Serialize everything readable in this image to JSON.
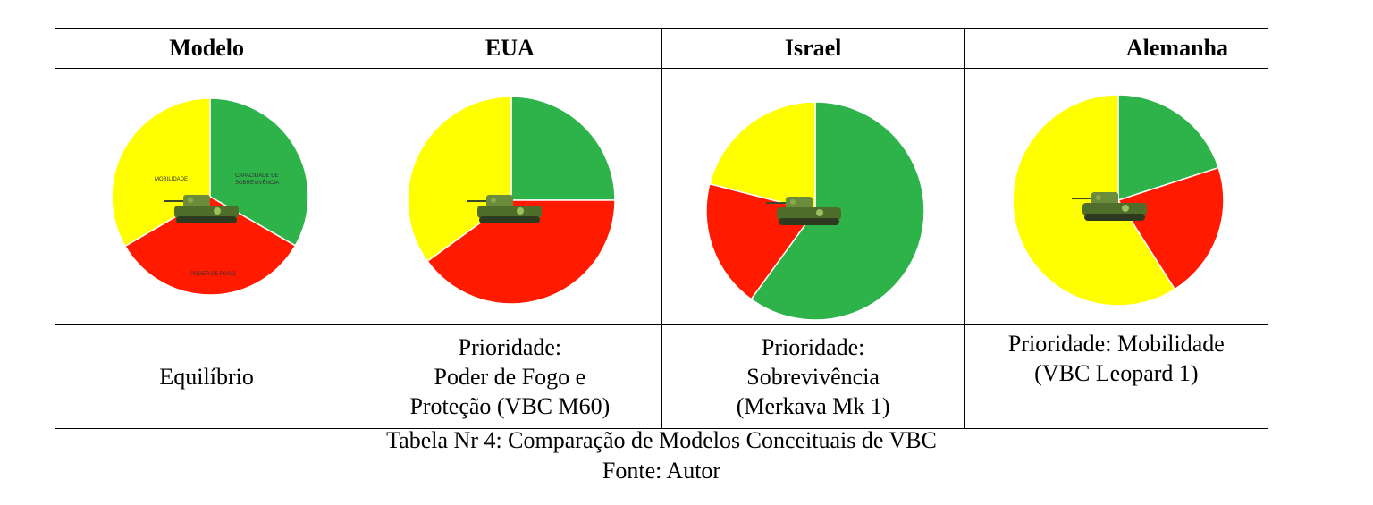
{
  "table": {
    "headers": [
      "Modelo",
      "EUA",
      "Israel",
      "Alemanha"
    ],
    "rows": [
      {
        "desc": [
          "Equilíbrio"
        ]
      },
      {
        "desc": [
          "Prioridade:",
          "Poder de Fogo e",
          "Proteção (VBC M60)"
        ]
      },
      {
        "desc": [
          "Prioridade:",
          "Sobrevivência",
          "(Merkava Mk 1)"
        ]
      },
      {
        "desc": [
          "Prioridade: Mobilidade",
          "(VBC Leopard 1)"
        ]
      }
    ]
  },
  "chart_data": [
    {
      "type": "pie",
      "colors": [
        "#2db34a",
        "#ff1a00",
        "#ffff00"
      ],
      "slice_labels": [
        "CAPACIDADE DE SOBREVIVÊNCIA",
        "PODER DE FOGO",
        "MOBILIDADE"
      ],
      "values": [
        33.3,
        33.3,
        33.4
      ]
    },
    {
      "type": "pie",
      "colors": [
        "#2db34a",
        "#ff1a00",
        "#ffff00"
      ],
      "values": [
        25,
        40,
        35
      ]
    },
    {
      "type": "pie",
      "colors": [
        "#2db34a",
        "#ff1a00",
        "#ffff00"
      ],
      "values": [
        60,
        19,
        21
      ]
    },
    {
      "type": "pie",
      "colors": [
        "#2db34a",
        "#ff1a00",
        "#ffff00"
      ],
      "values": [
        20,
        21,
        59
      ]
    }
  ],
  "caption": {
    "line1": "Tabela Nr 4: Comparação de Modelos Conceituais de VBC",
    "line2": "Fonte: Autor"
  }
}
